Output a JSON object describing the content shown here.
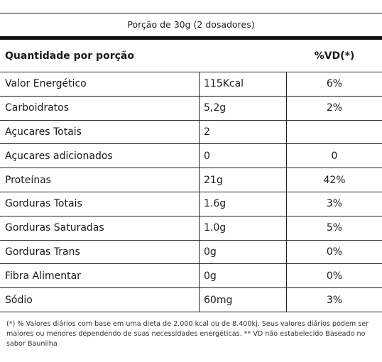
{
  "serving_size": "Porção de 30g (2 dosadores)",
  "header": {
    "name": "Quantidade por porção",
    "vd": "%VD(*)"
  },
  "rows": [
    {
      "name": "Valor Energético",
      "amount": "115Kcal",
      "vd": "6%"
    },
    {
      "name": "Carboidratos",
      "amount": "5,2g",
      "vd": "2%"
    },
    {
      "name": "Açucares Totais",
      "amount": "2",
      "vd": ""
    },
    {
      "name": "Açucares adicionados",
      "amount": "0",
      "vd": "0"
    },
    {
      "name": "Proteínas",
      "amount": "21g",
      "vd": "42%"
    },
    {
      "name": "Gorduras Totais",
      "amount": "1.6g",
      "vd": "3%"
    },
    {
      "name": "Gorduras Saturadas",
      "amount": "1.0g",
      "vd": "5%"
    },
    {
      "name": "Gorduras Trans",
      "amount": "0g",
      "vd": "0%"
    },
    {
      "name": "Fibra Alimentar",
      "amount": "0g",
      "vd": "0%"
    },
    {
      "name": "Sódio",
      "amount": "60mg",
      "vd": "3%"
    }
  ],
  "footnote": "(*) % Valores diários com base em uma dieta de 2.000 kcal ou de 8.400kj. Seus valores diários podem ser maiores ou menores dependendo de suas necessidades energéticas. ** VD não estabelecido Baseado no sabor Baunilha"
}
